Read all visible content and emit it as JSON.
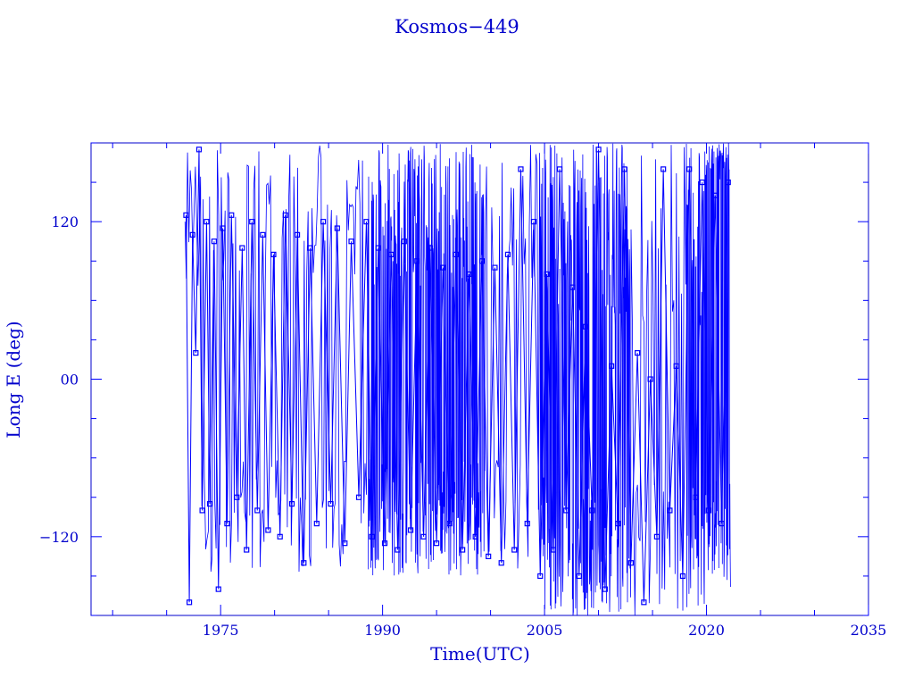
{
  "chart_data": {
    "type": "line",
    "title": "Kosmos−449",
    "xlabel": "Time(UTC)",
    "ylabel": "Long E (deg)",
    "xlim": [
      1963,
      2035
    ],
    "ylim": [
      -180,
      180
    ],
    "x_ticks": [
      1975,
      1990,
      2005,
      2020,
      2035
    ],
    "x_tick_labels": [
      "1975",
      "1990",
      "2005",
      "2020",
      "2035"
    ],
    "y_ticks": [
      -120,
      0,
      120
    ],
    "y_tick_labels": [
      "−120",
      "00",
      "120"
    ],
    "grid": false,
    "legend": "none",
    "color": "#0000ff",
    "marker": "square",
    "data_span": [
      1971.7,
      2022.2
    ],
    "series": [
      {
        "x": [
          1971.8,
          1972.1,
          1972.4,
          1972.7,
          1973.0,
          1973.3,
          1973.7,
          1974.0,
          1974.4,
          1974.8,
          1975.2,
          1975.6,
          1976.0,
          1976.5,
          1977.0,
          1977.4,
          1977.9,
          1978.4,
          1978.9,
          1979.4,
          1979.9,
          1980.5,
          1981.0,
          1981.6,
          1982.1,
          1982.7,
          1983.3,
          1983.9,
          1984.5,
          1985.2,
          1985.8,
          1986.5,
          1987.1,
          1987.8,
          1988.5,
          1989.0,
          1989.6,
          1990.2,
          1990.8,
          1991.4,
          1992.0,
          1992.6,
          1993.2,
          1993.8,
          1994.4,
          1995.0,
          1995.6,
          1996.2,
          1996.8,
          1997.4,
          1998.0,
          1998.6,
          1999.2,
          1999.8,
          2000.4,
          2001.0,
          2001.6,
          2002.2,
          2002.8,
          2003.4,
          2004.0,
          2004.6,
          2005.2,
          2005.8,
          2006.4,
          2007.0,
          2007.6,
          2008.2,
          2008.8,
          2009.4,
          2010.0,
          2010.6,
          2011.2,
          2011.8,
          2012.4,
          2013.0,
          2013.6,
          2014.2,
          2014.8,
          2015.4,
          2016.0,
          2016.6,
          2017.2,
          2017.8,
          2018.4,
          2019.0,
          2019.6,
          2020.2,
          2020.8,
          2021.4,
          2022.0
        ],
        "y": [
          125,
          -170,
          110,
          20,
          175,
          -100,
          120,
          -95,
          105,
          -160,
          115,
          -110,
          125,
          -90,
          100,
          -130,
          120,
          -100,
          110,
          -115,
          95,
          -120,
          125,
          -95,
          110,
          -140,
          100,
          -110,
          120,
          -95,
          115,
          -125,
          105,
          -90,
          120,
          -120,
          100,
          -125,
          95,
          -130,
          105,
          -115,
          90,
          -120,
          100,
          -125,
          85,
          -110,
          95,
          -130,
          80,
          -120,
          90,
          -135,
          85,
          -140,
          95,
          -130,
          160,
          -110,
          120,
          -150,
          80,
          -130,
          160,
          -100,
          70,
          -150,
          40,
          -100,
          175,
          -160,
          10,
          -110,
          160,
          -140,
          20,
          -170,
          0,
          -120,
          160,
          -100,
          10,
          -150,
          160,
          -90,
          150,
          -100,
          140,
          -110,
          150
        ]
      }
    ]
  }
}
